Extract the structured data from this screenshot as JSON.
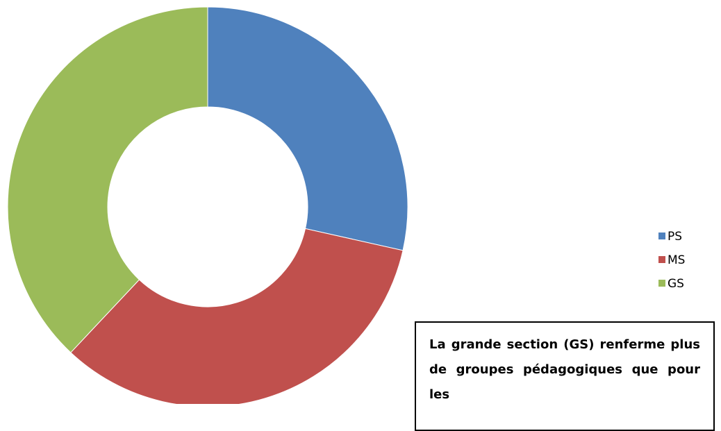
{
  "chart_data": {
    "type": "pie",
    "donut": true,
    "categories": [
      "PS",
      "MS",
      "GS"
    ],
    "values": [
      28.5,
      33.5,
      38
    ],
    "colors": [
      "#4f81bd",
      "#c0504d",
      "#9bbb59"
    ],
    "legend": "right",
    "annotation": "La grande section (GS) renferme plus de groupes pédagogiques que pour les"
  }
}
